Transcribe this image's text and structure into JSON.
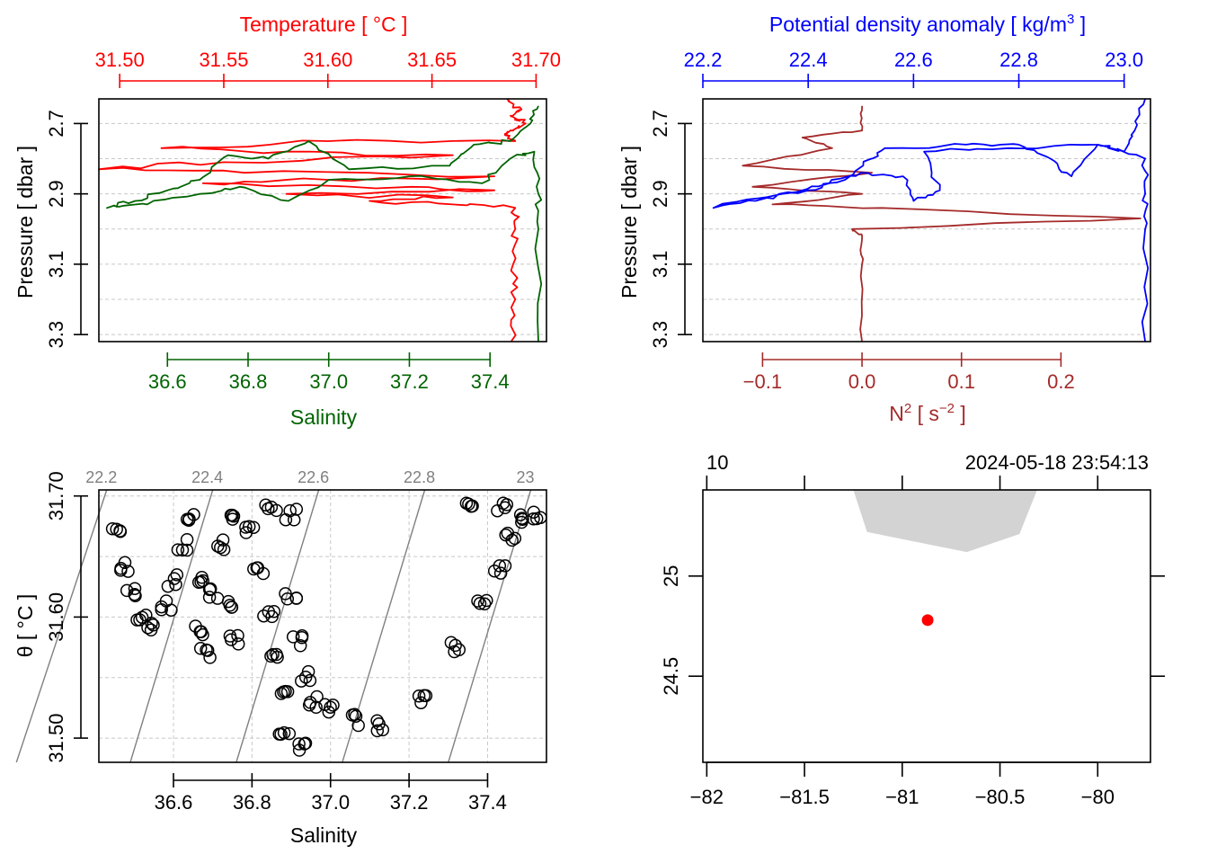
{
  "colors": {
    "temperature": "#ff0000",
    "salinity": "#006400",
    "density": "#0000ff",
    "n2": "#a52a2a",
    "isopycnal": "#808080",
    "station": "#ff0000",
    "land": "#d3d3d3"
  },
  "chart_data": [
    {
      "type": "line",
      "panel": "T-S profile",
      "title": "Temperature [ °C ]",
      "xlabel": "Salinity",
      "ylabel": "Pressure [ dbar ]",
      "top_axis": {
        "label": "Temperature [ °C ]",
        "ticks": [
          "31.50",
          "31.55",
          "31.60",
          "31.65",
          "31.70"
        ],
        "range": [
          31.49,
          31.705
        ]
      },
      "bottom_axis": {
        "label": "Salinity",
        "ticks": [
          "36.6",
          "36.8",
          "37.0",
          "37.2",
          "37.4"
        ],
        "range": [
          36.43,
          37.54
        ]
      },
      "y_axis": {
        "ticks": [
          "2.7",
          "2.9",
          "3.1",
          "3.3"
        ],
        "range": [
          3.32,
          2.63
        ],
        "reversed": true
      },
      "grid": true,
      "series": [
        {
          "name": "Temperature",
          "axis": "top",
          "points": [
            [
              31.686,
              2.63
            ],
            [
              31.693,
              2.66
            ],
            [
              31.688,
              2.68
            ],
            [
              31.695,
              2.7
            ],
            [
              31.689,
              2.72
            ],
            [
              31.685,
              2.73
            ],
            [
              31.69,
              2.75
            ],
            [
              31.6,
              2.75
            ],
            [
              31.52,
              2.77
            ],
            [
              31.58,
              2.78
            ],
            [
              31.66,
              2.79
            ],
            [
              31.55,
              2.81
            ],
            [
              31.49,
              2.83
            ],
            [
              31.56,
              2.84
            ],
            [
              31.68,
              2.85
            ],
            [
              31.6,
              2.86
            ],
            [
              31.54,
              2.87
            ],
            [
              31.64,
              2.88
            ],
            [
              31.68,
              2.89
            ],
            [
              31.58,
              2.9
            ],
            [
              31.66,
              2.91
            ],
            [
              31.62,
              2.92
            ],
            [
              31.66,
              2.93
            ],
            [
              31.69,
              2.94
            ],
            [
              31.69,
              3.0
            ],
            [
              31.689,
              3.1
            ],
            [
              31.69,
              3.2
            ],
            [
              31.688,
              3.32
            ]
          ]
        },
        {
          "name": "Salinity",
          "axis": "bottom",
          "points": [
            [
              37.52,
              2.65
            ],
            [
              37.5,
              2.7
            ],
            [
              37.45,
              2.75
            ],
            [
              37.36,
              2.76
            ],
            [
              37.3,
              2.82
            ],
            [
              37.05,
              2.83
            ],
            [
              36.95,
              2.75
            ],
            [
              36.85,
              2.8
            ],
            [
              36.75,
              2.79
            ],
            [
              36.68,
              2.86
            ],
            [
              36.6,
              2.89
            ],
            [
              36.52,
              2.92
            ],
            [
              36.45,
              2.94
            ],
            [
              36.55,
              2.93
            ],
            [
              36.68,
              2.9
            ],
            [
              36.78,
              2.88
            ],
            [
              36.9,
              2.92
            ],
            [
              37.0,
              2.86
            ],
            [
              37.2,
              2.85
            ],
            [
              37.38,
              2.87
            ],
            [
              37.45,
              2.8
            ],
            [
              37.51,
              2.78
            ],
            [
              37.52,
              2.9
            ],
            [
              37.52,
              3.0
            ],
            [
              37.52,
              3.32
            ]
          ]
        }
      ]
    },
    {
      "type": "line",
      "panel": "density and N2 profile",
      "title": "Potential density anomaly [ kg/m3 ]",
      "xlabel": "N2 [ s-2 ]",
      "ylabel": "Pressure [ dbar ]",
      "top_axis": {
        "label": "Potential density anomaly [ kg/m³ ]",
        "ticks": [
          "22.2",
          "22.4",
          "22.6",
          "22.8",
          "23.0"
        ],
        "range": [
          22.2,
          23.05
        ]
      },
      "bottom_axis": {
        "label": "N² [ s⁻² ]",
        "ticks": [
          "-0.1",
          "0.0",
          "0.1",
          "0.2"
        ],
        "range": [
          -0.16,
          0.29
        ]
      },
      "y_axis": {
        "ticks": [
          "2.7",
          "2.9",
          "3.1",
          "3.3"
        ],
        "range": [
          3.32,
          2.63
        ],
        "reversed": true
      },
      "grid": true,
      "series": [
        {
          "name": "Potential density anomaly",
          "axis": "top",
          "points": [
            [
              23.04,
              2.63
            ],
            [
              23.02,
              2.72
            ],
            [
              23.0,
              2.78
            ],
            [
              22.95,
              2.76
            ],
            [
              22.9,
              2.85
            ],
            [
              22.86,
              2.8
            ],
            [
              22.8,
              2.76
            ],
            [
              22.7,
              2.76
            ],
            [
              22.55,
              2.77
            ],
            [
              22.52,
              2.8
            ],
            [
              22.47,
              2.86
            ],
            [
              22.4,
              2.89
            ],
            [
              22.3,
              2.92
            ],
            [
              22.22,
              2.94
            ],
            [
              22.35,
              2.9
            ],
            [
              22.44,
              2.87
            ],
            [
              22.5,
              2.84
            ],
            [
              22.58,
              2.85
            ],
            [
              22.6,
              2.92
            ],
            [
              22.65,
              2.89
            ],
            [
              22.62,
              2.78
            ],
            [
              22.78,
              2.77
            ],
            [
              22.95,
              2.76
            ],
            [
              23.04,
              2.8
            ],
            [
              23.04,
              2.9
            ],
            [
              23.04,
              3.0
            ],
            [
              23.04,
              3.32
            ]
          ]
        },
        {
          "name": "N2",
          "axis": "bottom",
          "points": [
            [
              0.0,
              2.65
            ],
            [
              0.0,
              2.72
            ],
            [
              -0.06,
              2.74
            ],
            [
              -0.03,
              2.77
            ],
            [
              -0.12,
              2.82
            ],
            [
              0.01,
              2.84
            ],
            [
              -0.11,
              2.88
            ],
            [
              0.0,
              2.9
            ],
            [
              -0.09,
              2.93
            ],
            [
              0.02,
              2.94
            ],
            [
              0.28,
              2.97
            ],
            [
              -0.01,
              3.0
            ],
            [
              0.0,
              3.02
            ],
            [
              0.0,
              3.1
            ],
            [
              0.0,
              3.32
            ]
          ]
        }
      ]
    },
    {
      "type": "scatter",
      "panel": "T-S diagram",
      "xlabel": "Salinity",
      "ylabel": "θ [ °C ]",
      "x_axis": {
        "ticks": [
          "36.6",
          "36.8",
          "37.0",
          "37.2",
          "37.4"
        ],
        "range": [
          36.41,
          37.55
        ]
      },
      "y_axis": {
        "ticks": [
          "31.50",
          "31.60",
          "31.70"
        ],
        "range": [
          31.48,
          31.705
        ]
      },
      "isopycnal_labels": [
        "22.2",
        "22.4",
        "22.6",
        "22.8",
        "23"
      ],
      "isopycnal_values": [
        22.2,
        22.4,
        22.6,
        22.8,
        23.0
      ],
      "grid": true,
      "marker": "open-circle",
      "points": [
        [
          36.45,
          31.67
        ],
        [
          36.47,
          31.64
        ],
        [
          36.49,
          31.62
        ],
        [
          36.52,
          31.6
        ],
        [
          36.55,
          31.59
        ],
        [
          36.58,
          31.61
        ],
        [
          36.6,
          31.63
        ],
        [
          36.62,
          31.66
        ],
        [
          36.65,
          31.68
        ],
        [
          36.66,
          31.63
        ],
        [
          36.67,
          31.59
        ],
        [
          36.68,
          31.57
        ],
        [
          36.7,
          31.62
        ],
        [
          36.72,
          31.66
        ],
        [
          36.74,
          31.61
        ],
        [
          36.75,
          31.58
        ],
        [
          36.76,
          31.68
        ],
        [
          36.8,
          31.67
        ],
        [
          36.82,
          31.64
        ],
        [
          36.84,
          31.6
        ],
        [
          36.86,
          31.57
        ],
        [
          36.88,
          31.54
        ],
        [
          36.9,
          31.62
        ],
        [
          36.92,
          31.58
        ],
        [
          36.94,
          31.55
        ],
        [
          36.96,
          31.53
        ],
        [
          37.0,
          31.525
        ],
        [
          37.07,
          31.515
        ],
        [
          37.13,
          31.51
        ],
        [
          37.23,
          31.53
        ],
        [
          37.32,
          31.575
        ],
        [
          37.39,
          31.615
        ],
        [
          37.43,
          31.64
        ],
        [
          37.46,
          31.665
        ],
        [
          37.48,
          31.68
        ],
        [
          37.44,
          31.69
        ],
        [
          37.35,
          31.69
        ],
        [
          37.52,
          31.685
        ],
        [
          36.9,
          31.685
        ],
        [
          36.85,
          31.69
        ],
        [
          36.93,
          31.495
        ],
        [
          36.88,
          31.5
        ]
      ]
    },
    {
      "type": "scatter",
      "panel": "station map",
      "x_axis": {
        "ticks": [
          "-82",
          "-81.5",
          "-81",
          "-80.5",
          "-80"
        ],
        "range": [
          -82.02,
          -79.73
        ]
      },
      "y_axis": {
        "ticks": [
          "24.5",
          "25"
        ],
        "range": [
          24.07,
          25.43
        ]
      },
      "top_left_label": "10",
      "top_right_label": "2024-05-18 23:54:13",
      "station": {
        "lon": -80.87,
        "lat": 24.78
      },
      "land": [
        [
          -81.25,
          25.43
        ],
        [
          -81.18,
          25.22
        ],
        [
          -80.67,
          25.12
        ],
        [
          -80.4,
          25.21
        ],
        [
          -80.31,
          25.43
        ]
      ]
    }
  ]
}
